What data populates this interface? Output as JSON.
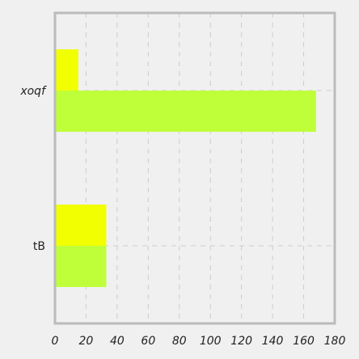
{
  "chart_data": {
    "type": "bar",
    "orientation": "horizontal",
    "categories": [
      "xoqf",
      "tB"
    ],
    "series": [
      {
        "color": "#f2ff00",
        "values": [
          15,
          33
        ]
      },
      {
        "color": "#bfff3a",
        "values": [
          168,
          33
        ]
      }
    ],
    "xlim": [
      0,
      180
    ],
    "x_ticks": [
      "0",
      "20",
      "40",
      "60",
      "80",
      "100",
      "120",
      "140",
      "160",
      "180"
    ],
    "grid": true,
    "legend": "none",
    "colors": {
      "background": "#f0f0f0",
      "axes_frame": "#bbbbbb",
      "grid": "#cccccc"
    }
  }
}
